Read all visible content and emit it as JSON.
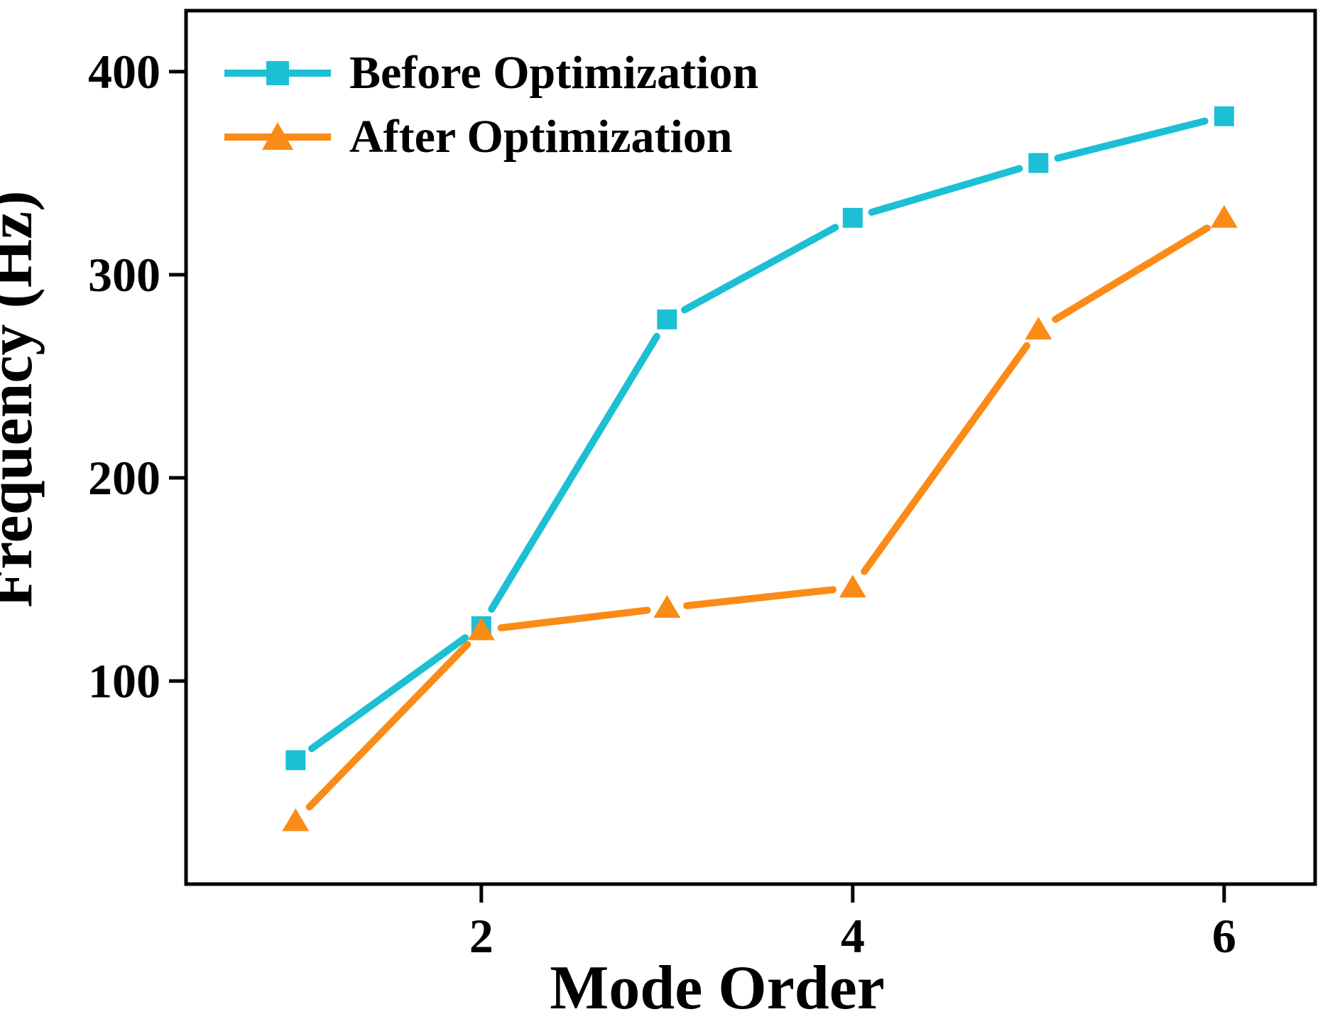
{
  "figure": {
    "background": "#FFFFFF"
  },
  "legend": {
    "entries": [
      {
        "label": "Before Optimization",
        "color": "#1CBFD4",
        "marker": "square"
      },
      {
        "label": "After Optimization",
        "color": "#FB8B17",
        "marker": "triangle"
      }
    ]
  },
  "chart_data": {
    "type": "line",
    "x": [
      1,
      2,
      3,
      4,
      5,
      6
    ],
    "series": [
      {
        "name": "Before Optimization",
        "marker": "square",
        "color": "#1CBFD4",
        "values": [
          61,
          127,
          278,
          328,
          355,
          378
        ]
      },
      {
        "name": "After Optimization",
        "marker": "triangle",
        "color": "#FB8B17",
        "values": [
          31,
          125,
          136,
          146,
          273,
          328
        ]
      }
    ],
    "title": "",
    "xlabel": "Mode Order",
    "ylabel": "Frequency (Hz)",
    "xticks": [
      2,
      4,
      6
    ],
    "yticks": [
      100,
      200,
      300,
      400
    ],
    "xlim": [
      0.41,
      6.49
    ],
    "ylim": [
      0,
      430
    ],
    "grid": false,
    "legend_position": "top-left",
    "axis_color": "#000000"
  }
}
